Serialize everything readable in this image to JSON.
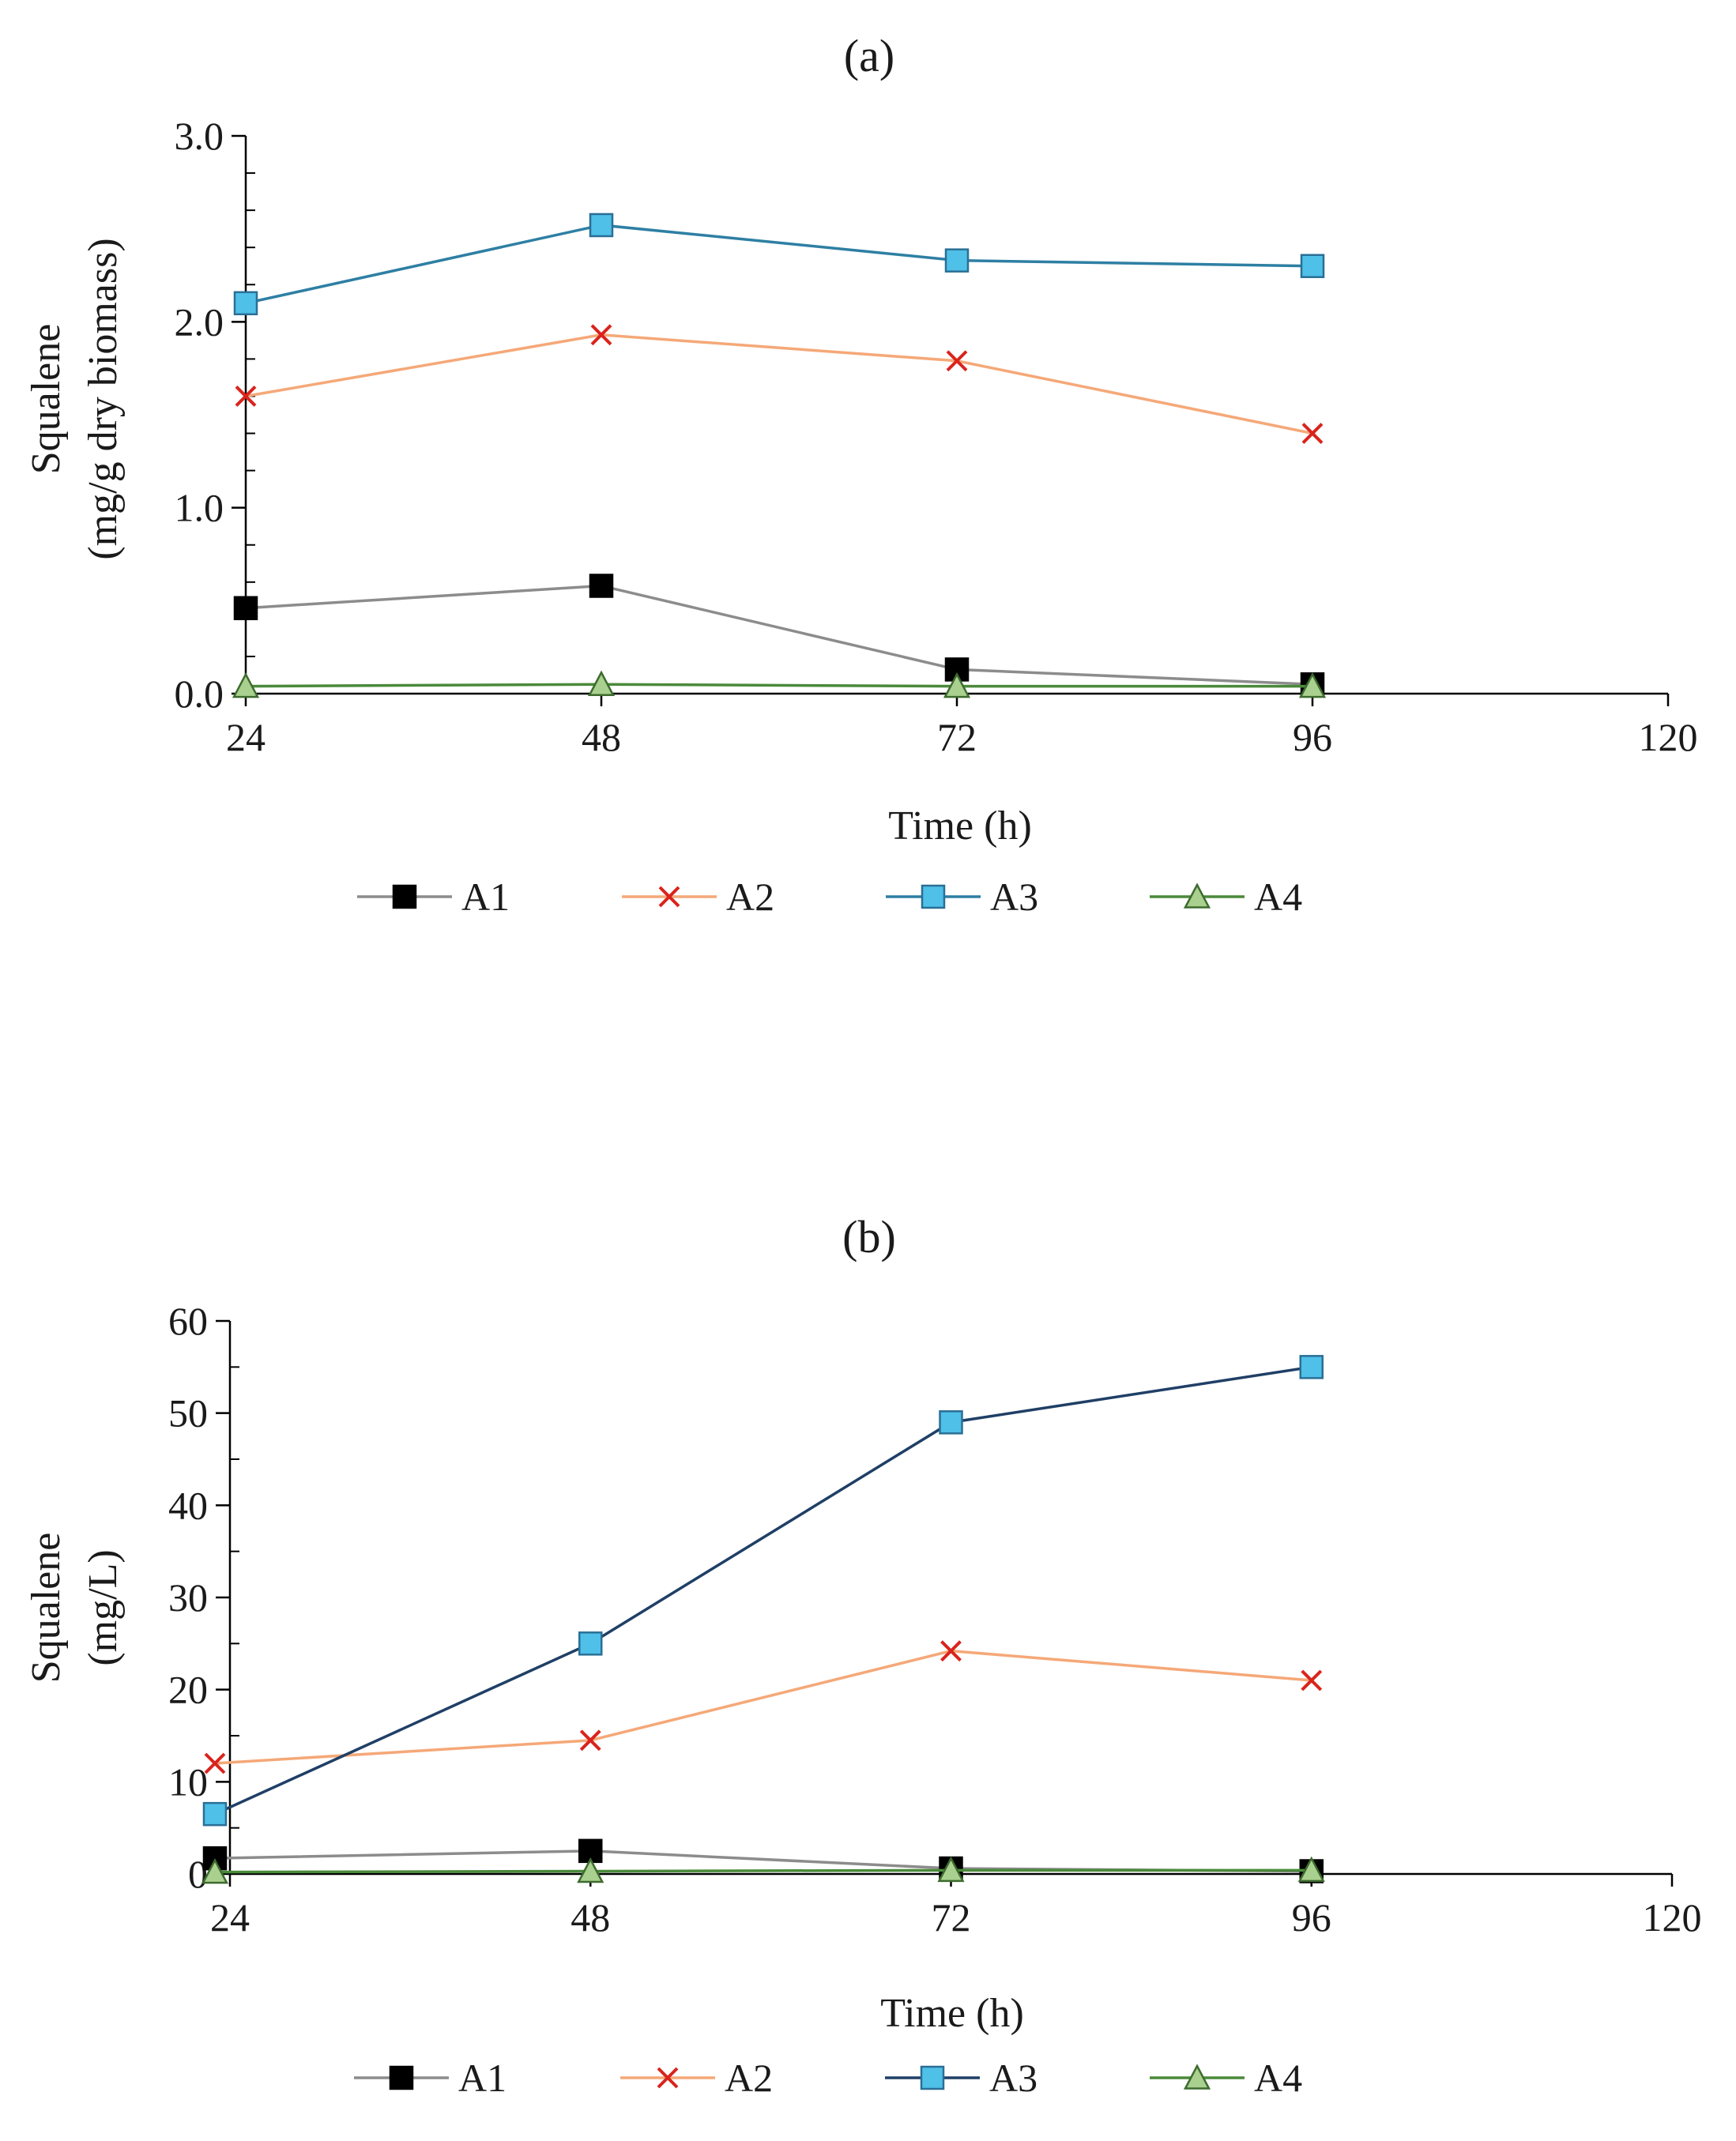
{
  "chart_data": [
    {
      "type": "line",
      "title": "(a)",
      "xlabel": "Time (h)",
      "ylabel_line1": "Squalene",
      "ylabel_line2": "(mg/g dry biomass)",
      "x_ticks": [
        24,
        48,
        72,
        96,
        120
      ],
      "x_tick_labels": [
        "24",
        "48",
        "72",
        "96",
        "120"
      ],
      "xlim": [
        24,
        120
      ],
      "y_ticks": [
        0,
        1,
        2,
        3
      ],
      "y_tick_labels": [
        "0.0",
        "1.0",
        "2.0",
        "3.0"
      ],
      "ylim": [
        0,
        3
      ],
      "minor_y_ticks_per_major": 5,
      "grid": false,
      "legend_position": "bottom",
      "series": [
        {
          "name": "A1",
          "marker": "square",
          "line_color": "#8c8c8c",
          "marker_fill": "#000000",
          "marker_stroke": "#000000",
          "x": [
            24,
            48,
            72,
            96
          ],
          "values": [
            0.46,
            0.58,
            0.13,
            0.05
          ]
        },
        {
          "name": "A2",
          "marker": "x",
          "line_color": "#f5a878",
          "marker_fill": "none",
          "marker_stroke": "#d9241c",
          "x": [
            24,
            48,
            72,
            96
          ],
          "values": [
            1.6,
            1.93,
            1.79,
            1.4
          ]
        },
        {
          "name": "A3",
          "marker": "square",
          "line_color": "#2e7fa3",
          "marker_fill": "#4fc0e8",
          "marker_stroke": "#2a6f96",
          "x": [
            24,
            48,
            72,
            96
          ],
          "values": [
            2.1,
            2.52,
            2.33,
            2.3
          ]
        },
        {
          "name": "A4",
          "marker": "triangle",
          "line_color": "#4a8a3a",
          "marker_fill": "#a9d08e",
          "marker_stroke": "#3d6b2e",
          "x": [
            24,
            48,
            72,
            96
          ],
          "values": [
            0.04,
            0.05,
            0.04,
            0.04
          ]
        }
      ]
    },
    {
      "type": "line",
      "title": "(b)",
      "xlabel": "Time (h)",
      "ylabel_line1": "Squalene",
      "ylabel_line2": "(mg/L)",
      "x_ticks": [
        24,
        48,
        72,
        96,
        120
      ],
      "x_tick_labels": [
        "24",
        "48",
        "72",
        "96",
        "120"
      ],
      "xlim": [
        24,
        120
      ],
      "y_ticks": [
        0,
        10,
        20,
        30,
        40,
        50,
        60
      ],
      "y_tick_labels": [
        "0",
        "10",
        "20",
        "30",
        "40",
        "50",
        "60"
      ],
      "ylim": [
        0,
        60
      ],
      "minor_y_ticks_per_major": 2,
      "grid": false,
      "legend_position": "bottom",
      "series": [
        {
          "name": "A1",
          "marker": "square",
          "line_color": "#8c8c8c",
          "marker_fill": "#000000",
          "marker_stroke": "#000000",
          "x": [
            23,
            48,
            72,
            96
          ],
          "values": [
            1.7,
            2.5,
            0.6,
            0.3
          ]
        },
        {
          "name": "A2",
          "marker": "x",
          "line_color": "#f5a878",
          "marker_fill": "none",
          "marker_stroke": "#d9241c",
          "x": [
            23,
            48,
            72,
            96
          ],
          "values": [
            12,
            14.5,
            24.2,
            21
          ]
        },
        {
          "name": "A3",
          "marker": "square",
          "line_color": "#1f3f66",
          "marker_fill": "#4fc0e8",
          "marker_stroke": "#2a6f96",
          "x": [
            23,
            48,
            72,
            96
          ],
          "values": [
            6.5,
            25,
            49,
            55
          ]
        },
        {
          "name": "A4",
          "marker": "triangle",
          "line_color": "#4a8a3a",
          "marker_fill": "#a9d08e",
          "marker_stroke": "#3d6b2e",
          "x": [
            23,
            48,
            72,
            96
          ],
          "values": [
            0.2,
            0.3,
            0.4,
            0.4
          ]
        }
      ]
    }
  ]
}
